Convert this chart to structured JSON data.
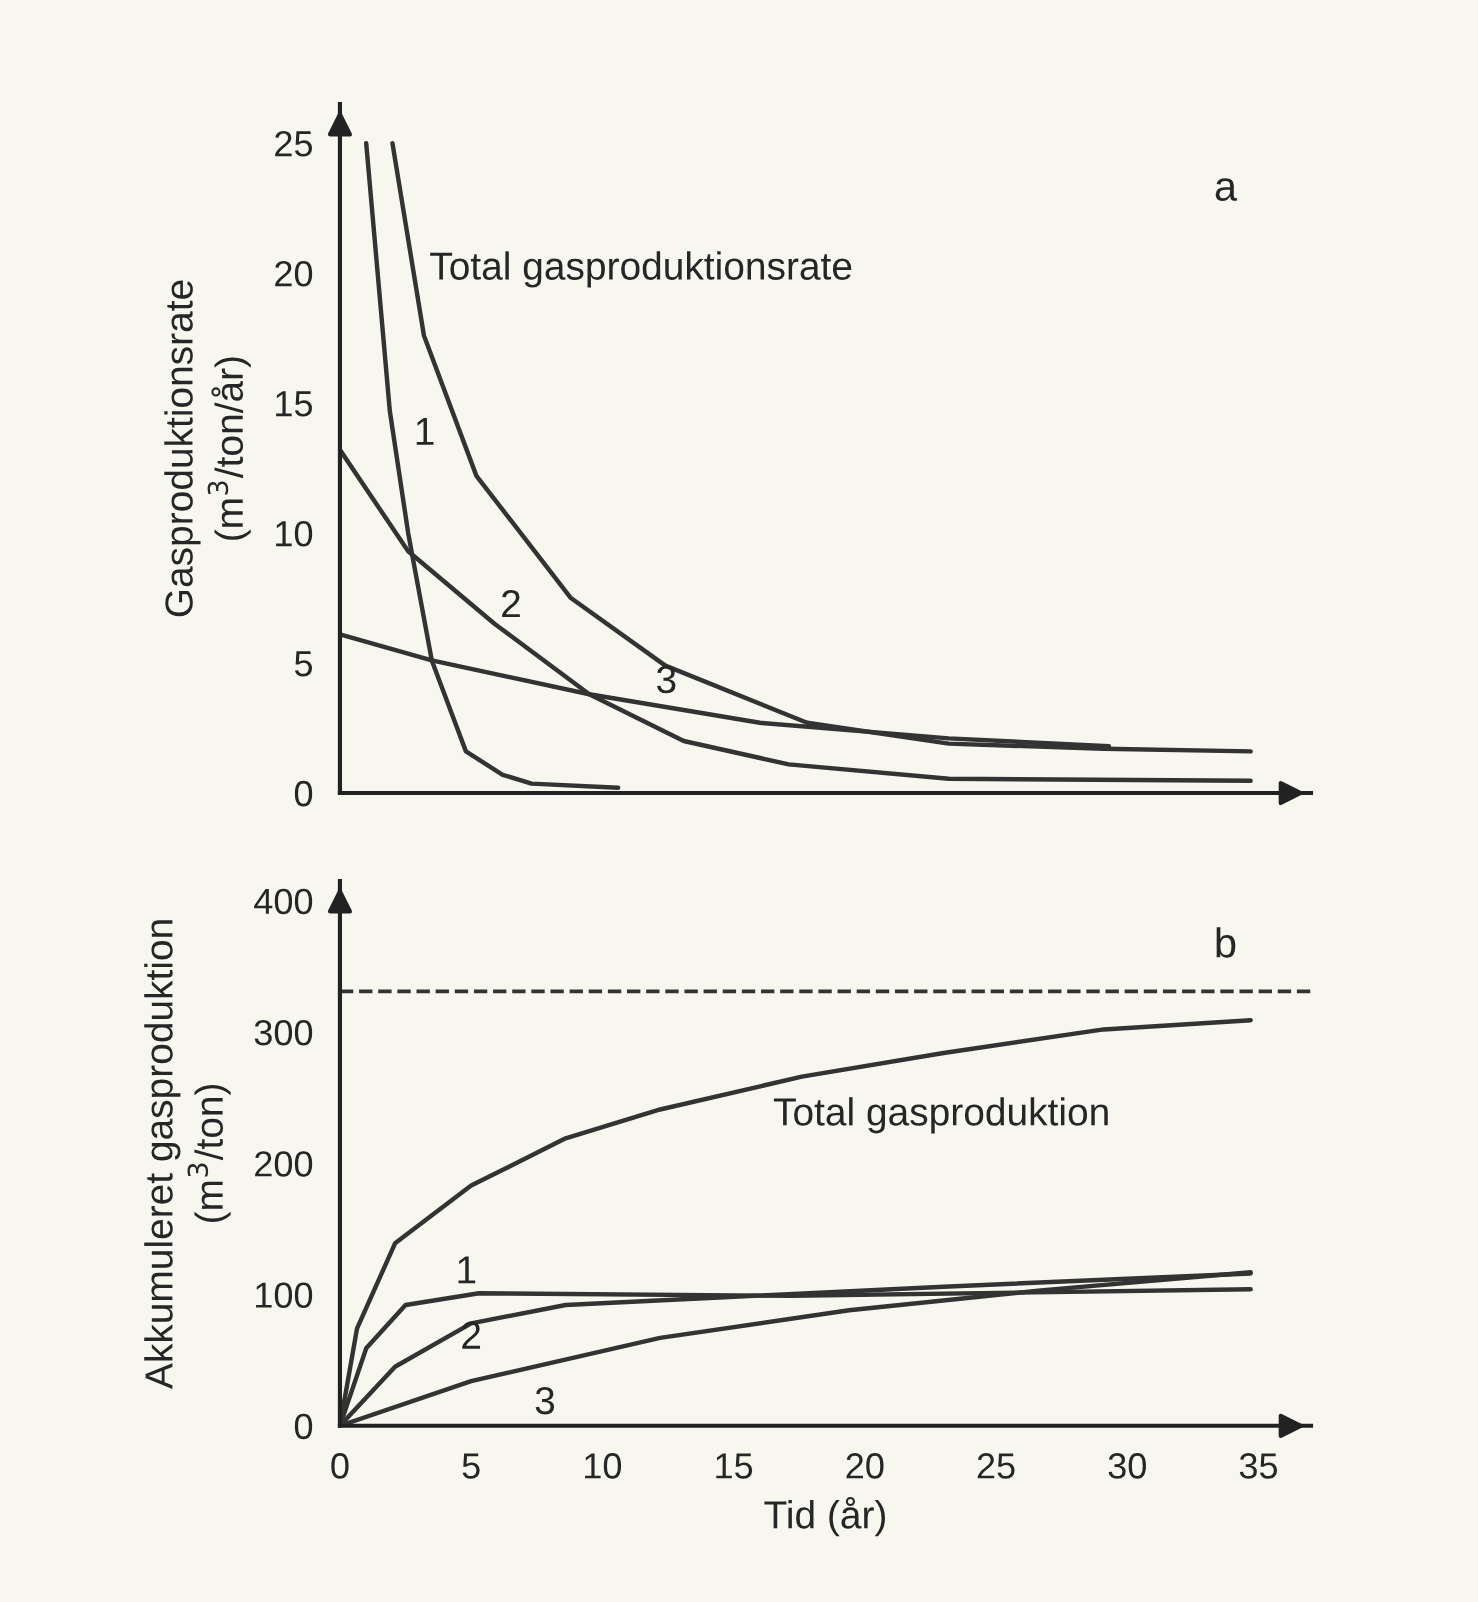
{
  "chart_data": [
    {
      "type": "line",
      "ylabel": "Gasproduktionsrate\n(m$^{3}$/ton/år)",
      "xlim": [
        0,
        37
      ],
      "ylim": [
        0,
        26.5
      ],
      "yticks": [
        0,
        5,
        10,
        15,
        20,
        25
      ],
      "tick_labels": "y",
      "grid": false,
      "legend": false,
      "marker": "none",
      "line_style": "solid",
      "series": [
        {
          "name": "1",
          "color": "#333333",
          "x": [
            1.0,
            1.9,
            2.6,
            3.5,
            4.8,
            6.2,
            7.3,
            10.6
          ],
          "values": [
            25,
            14.7,
            10,
            5.1,
            1.6,
            0.7,
            0.36,
            0.2
          ]
        },
        {
          "name": "2",
          "color": "#333333",
          "x": [
            0,
            2.6,
            5.9,
            9.5,
            13.1,
            17.1,
            23.2,
            34.7
          ],
          "values": [
            13.2,
            9.3,
            6.5,
            3.8,
            2.0,
            1.1,
            0.55,
            0.47
          ]
        },
        {
          "name": "3",
          "color": "#333333",
          "x": [
            0,
            3.5,
            9.5,
            16,
            23.2,
            29.3
          ],
          "values": [
            6.1,
            5.1,
            3.8,
            2.7,
            2.1,
            1.8
          ]
        },
        {
          "name": "Total gasproduktionsrate",
          "color": "#333333",
          "x": [
            2.0,
            3.2,
            5.2,
            8.8,
            12.4,
            17.8,
            23.2,
            29.1,
            34.7
          ],
          "values": [
            25,
            17.6,
            12.2,
            7.5,
            4.9,
            2.7,
            1.9,
            1.7,
            1.6
          ]
        }
      ],
      "annotations": [
        "a"
      ]
    },
    {
      "type": "line",
      "xlabel": "Tid (år)",
      "ylabel": "Akkumuleret gasproduktion\n(m$^{3}$/ton)",
      "xlim": [
        0,
        37
      ],
      "ylim": [
        0,
        415
      ],
      "xticks": [
        0,
        5,
        10,
        15,
        20,
        25,
        30,
        35
      ],
      "yticks": [
        0,
        100,
        200,
        300,
        400
      ],
      "grid": false,
      "legend": false,
      "marker": "none",
      "line_style": "solid",
      "series": [
        {
          "name": "Total gasproduktion",
          "color": "#333333",
          "x": [
            0,
            0.65,
            2.1,
            5,
            8.6,
            12.2,
            17.6,
            23,
            29.1,
            34.7
          ],
          "values": [
            0,
            74,
            139,
            183,
            219,
            241,
            266,
            284,
            302,
            309
          ]
        },
        {
          "name": "1",
          "color": "#333333",
          "x": [
            0,
            1,
            2.5,
            5.3,
            17.2,
            34.7
          ],
          "values": [
            0,
            59,
            92,
            101,
            99,
            104
          ]
        },
        {
          "name": "2",
          "color": "#333333",
          "x": [
            0,
            2.1,
            5,
            8.6,
            15.8,
            23,
            34.7
          ],
          "values": [
            0,
            45,
            78,
            92,
            99,
            106,
            116
          ]
        },
        {
          "name": "3",
          "color": "#333333",
          "x": [
            0,
            5,
            12.2,
            19.4,
            26.6,
            34.7
          ],
          "values": [
            0,
            34,
            67,
            88,
            103,
            117
          ]
        }
      ],
      "ref_lines": [
        {
          "axis": "y",
          "value": 331,
          "color": "#333333",
          "line_style": "dashed"
        }
      ],
      "annotations": [
        "b"
      ]
    }
  ]
}
